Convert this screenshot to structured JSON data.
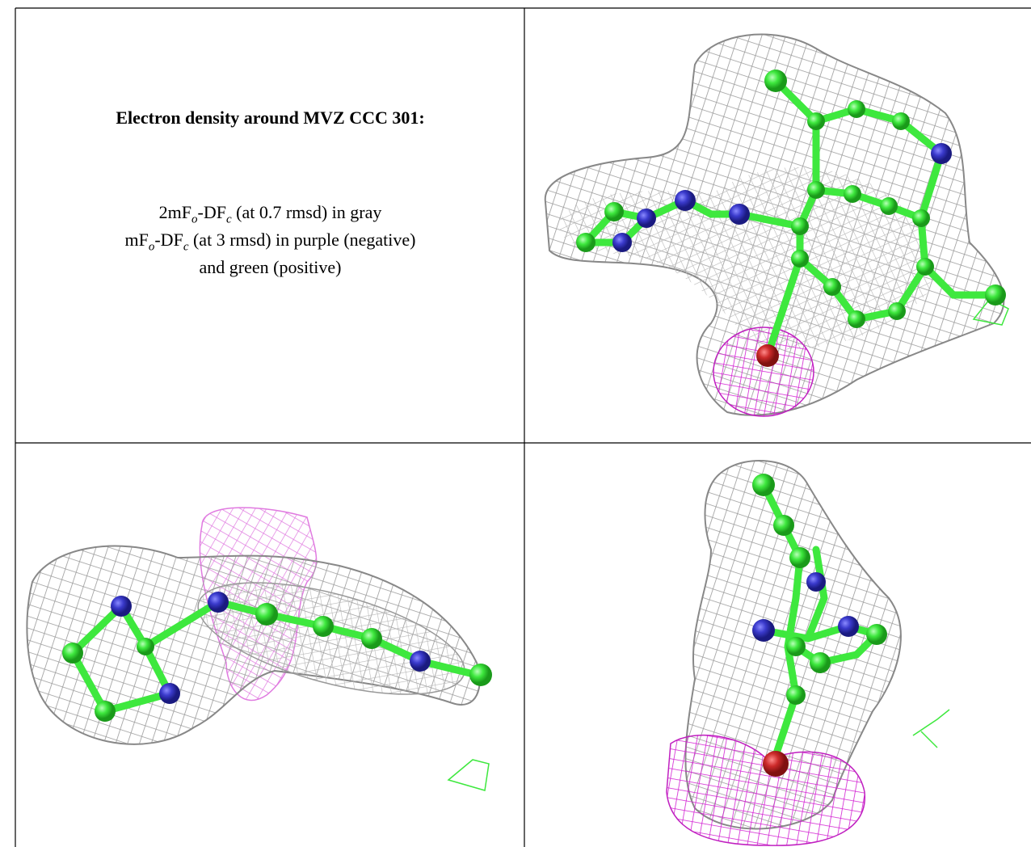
{
  "caption": {
    "title": "Electron density around MVZ CCC 301:",
    "line1": [
      "2mF",
      "o",
      "-DF",
      "c",
      " (at 0.7 rmsd) in gray"
    ],
    "line2": [
      "mF",
      "o",
      "-DF",
      "c",
      " (at 3 rmsd) in purple (negative)"
    ],
    "line3": "and green (positive)"
  }
}
